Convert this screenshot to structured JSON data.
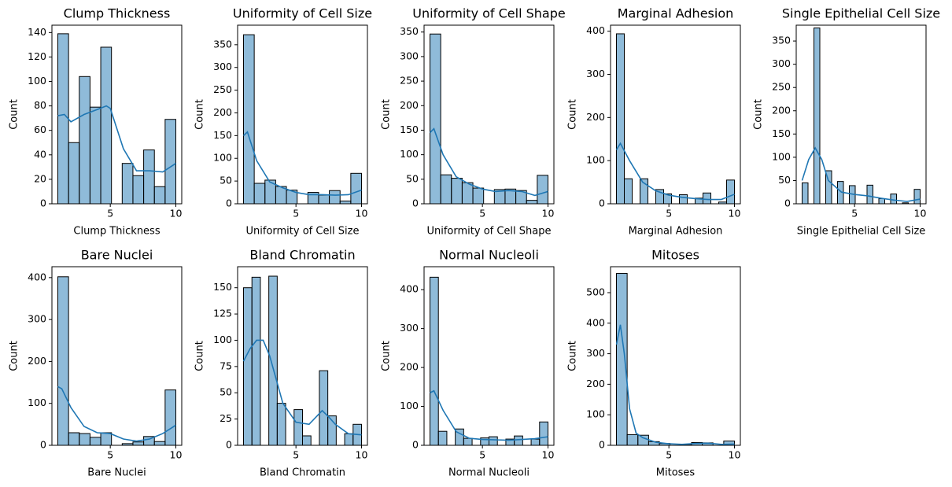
{
  "chart_data": [
    {
      "type": "histogram",
      "title": "Clump Thickness",
      "xlabel": "Clump Thickness",
      "ylabel": "Count",
      "color": "#1f77b4",
      "bins": [
        1,
        1.818,
        2.636,
        3.455,
        4.273,
        5.091,
        5.909,
        6.727,
        7.545,
        8.364,
        9.182,
        10
      ],
      "counts": [
        139,
        50,
        104,
        79,
        128,
        0,
        33,
        23,
        44,
        14,
        69
      ],
      "kde": {
        "x": [
          1,
          1.5,
          2,
          3,
          4,
          4.7,
          5,
          6,
          7,
          8,
          9,
          10
        ],
        "values": [
          72,
          73,
          67,
          73,
          77,
          80,
          78,
          45,
          27,
          27,
          26,
          33
        ]
      },
      "xlim": [
        0.55,
        10.45
      ],
      "xticks": [
        5,
        10
      ],
      "ylim": [
        0,
        146
      ],
      "yticks": [
        0,
        20,
        40,
        60,
        80,
        100,
        120,
        140
      ]
    },
    {
      "type": "histogram",
      "title": "Uniformity of Cell Size",
      "xlabel": "Uniformity of Cell Size",
      "ylabel": "Count",
      "color": "#1f77b4",
      "bins": [
        1,
        1.818,
        2.636,
        3.455,
        4.273,
        5.091,
        5.909,
        6.727,
        7.545,
        8.364,
        9.182,
        10
      ],
      "counts": [
        372,
        45,
        52,
        38,
        30,
        0,
        25,
        19,
        29,
        6,
        67
      ],
      "kde": {
        "x": [
          1,
          1.3,
          2,
          3,
          4,
          5,
          6,
          7,
          8,
          9,
          10
        ],
        "values": [
          150,
          158,
          95,
          48,
          35,
          25,
          20,
          20,
          19,
          20,
          30
        ]
      },
      "xlim": [
        0.55,
        10.45
      ],
      "xticks": [
        5,
        10
      ],
      "ylim": [
        0,
        393
      ],
      "yticks": [
        0,
        50,
        100,
        150,
        200,
        250,
        300,
        350
      ]
    },
    {
      "type": "histogram",
      "title": "Uniformity of Cell Shape",
      "xlabel": "Uniformity of Cell Shape",
      "ylabel": "Count",
      "color": "#1f77b4",
      "bins": [
        1,
        1.818,
        2.636,
        3.455,
        4.273,
        5.091,
        5.909,
        6.727,
        7.545,
        8.364,
        9.182,
        10
      ],
      "counts": [
        346,
        59,
        52,
        43,
        32,
        0,
        29,
        30,
        27,
        7,
        58
      ],
      "kde": {
        "x": [
          1,
          1.3,
          2,
          3,
          4,
          5,
          6,
          7,
          8,
          9,
          10
        ],
        "values": [
          145,
          153,
          100,
          55,
          40,
          30,
          25,
          27,
          25,
          17,
          25
        ]
      },
      "xlim": [
        0.55,
        10.45
      ],
      "xticks": [
        5,
        10
      ],
      "ylim": [
        0,
        364
      ],
      "yticks": [
        0,
        50,
        100,
        150,
        200,
        250,
        300,
        350
      ]
    },
    {
      "type": "histogram",
      "title": "Marginal Adhesion",
      "xlabel": "Marginal Adhesion",
      "ylabel": "Count",
      "color": "#1f77b4",
      "bins": [
        1,
        1.6,
        2.2,
        2.8,
        3.4,
        4,
        4.6,
        5.2,
        5.8,
        6.4,
        7,
        7.6,
        8.2,
        8.8,
        9.4,
        10
      ],
      "counts": [
        394,
        58,
        0,
        58,
        0,
        33,
        23,
        0,
        21,
        0,
        13,
        25,
        0,
        4,
        55
      ],
      "kde": {
        "x": [
          1,
          1.3,
          2,
          3,
          4,
          5,
          6,
          7,
          8,
          9,
          10
        ],
        "values": [
          125,
          140,
          100,
          50,
          30,
          20,
          15,
          12,
          10,
          10,
          22
        ]
      },
      "xlim": [
        0.55,
        10.45
      ],
      "xticks": [
        5,
        10
      ],
      "ylim": [
        0,
        414
      ],
      "yticks": [
        0,
        100,
        200,
        300,
        400
      ]
    },
    {
      "type": "histogram",
      "title": "Single Epithelial Cell Size",
      "xlabel": "Single Epithelial Cell Size",
      "ylabel": "Count",
      "color": "#1f77b4",
      "bins": [
        1,
        1.45,
        1.9,
        2.35,
        2.8,
        3.25,
        3.7,
        4.15,
        4.6,
        5.05,
        5.5,
        5.95,
        6.4,
        6.85,
        7.3,
        7.75,
        8.2,
        8.65,
        9.1,
        9.55,
        10
      ],
      "counts": [
        45,
        0,
        378,
        0,
        71,
        0,
        48,
        0,
        39,
        0,
        0,
        40,
        0,
        11,
        0,
        21,
        0,
        2,
        0,
        31
      ],
      "kde": {
        "x": [
          1,
          1.5,
          2,
          2.5,
          3,
          4,
          5,
          6,
          7,
          8,
          9,
          10
        ],
        "values": [
          50,
          95,
          120,
          95,
          50,
          25,
          20,
          17,
          12,
          8,
          5,
          10
        ]
      },
      "xlim": [
        0.55,
        10.45
      ],
      "xticks": [
        5,
        10
      ],
      "ylim": [
        0,
        384
      ],
      "yticks": [
        0,
        50,
        100,
        150,
        200,
        250,
        300,
        350
      ]
    },
    {
      "type": "histogram",
      "title": "Bare Nuclei",
      "xlabel": "Bare Nuclei",
      "ylabel": "Count",
      "color": "#1f77b4",
      "bins": [
        1,
        1.818,
        2.636,
        3.455,
        4.273,
        5.091,
        5.909,
        6.727,
        7.545,
        8.364,
        9.182,
        10
      ],
      "counts": [
        402,
        30,
        28,
        19,
        30,
        0,
        4,
        8,
        21,
        9,
        132
      ],
      "kde": {
        "x": [
          1,
          1.3,
          2,
          3,
          4,
          5,
          6,
          7,
          8,
          9,
          10
        ],
        "values": [
          140,
          135,
          90,
          45,
          30,
          28,
          15,
          10,
          15,
          28,
          48
        ]
      },
      "xlim": [
        0.55,
        10.45
      ],
      "xticks": [
        5,
        10
      ],
      "ylim": [
        0,
        426
      ],
      "yticks": [
        0,
        100,
        200,
        300,
        400
      ]
    },
    {
      "type": "histogram",
      "title": "Bland Chromatin",
      "xlabel": "Bland Chromatin",
      "ylabel": "Count",
      "color": "#1f77b4",
      "bins": [
        1,
        1.643,
        2.286,
        2.929,
        3.571,
        4.214,
        4.857,
        5.5,
        6.143,
        6.786,
        7.429,
        8.071,
        8.714,
        9.357,
        10
      ],
      "counts": [
        150,
        160,
        0,
        161,
        40,
        0,
        34,
        9,
        0,
        71,
        28,
        0,
        11,
        20
      ],
      "kde": {
        "x": [
          1,
          1.5,
          2,
          2.5,
          3,
          4,
          5,
          6,
          7,
          7.5,
          8,
          9,
          10
        ],
        "values": [
          80,
          92,
          100,
          100,
          85,
          40,
          22,
          20,
          33,
          27,
          20,
          11,
          10
        ]
      },
      "xlim": [
        0.55,
        10.45
      ],
      "xticks": [
        5,
        10
      ],
      "ylim": [
        0,
        170
      ],
      "yticks": [
        0,
        25,
        50,
        75,
        100,
        125,
        150
      ]
    },
    {
      "type": "histogram",
      "title": "Normal Nucleoli",
      "xlabel": "Normal Nucleoli",
      "ylabel": "Count",
      "color": "#1f77b4",
      "bins": [
        1,
        1.643,
        2.286,
        2.929,
        3.571,
        4.214,
        4.857,
        5.5,
        6.143,
        6.786,
        7.429,
        8.071,
        8.714,
        9.357,
        10
      ],
      "counts": [
        432,
        36,
        0,
        42,
        18,
        0,
        19,
        22,
        0,
        16,
        24,
        0,
        16,
        60
      ],
      "kde": {
        "x": [
          1,
          1.3,
          2,
          3,
          4,
          5,
          6,
          7,
          8,
          9,
          10
        ],
        "values": [
          135,
          140,
          90,
          35,
          18,
          15,
          14,
          13,
          15,
          17,
          22
        ]
      },
      "xlim": [
        0.55,
        10.45
      ],
      "xticks": [
        5,
        10
      ],
      "ylim": [
        0,
        459
      ],
      "yticks": [
        0,
        100,
        200,
        300,
        400
      ]
    },
    {
      "type": "histogram",
      "title": "Mitoses",
      "xlabel": "Mitoses",
      "ylabel": "Count",
      "color": "#1f77b4",
      "bins": [
        1,
        1.818,
        2.636,
        3.455,
        4.273,
        5.091,
        5.909,
        6.727,
        7.545,
        8.364,
        9.182,
        10
      ],
      "counts": [
        563,
        35,
        33,
        12,
        6,
        0,
        3,
        9,
        8,
        0,
        14
      ],
      "kde": {
        "x": [
          1,
          1.3,
          1.6,
          2,
          2.5,
          3,
          4,
          5,
          6,
          7,
          8,
          9,
          10
        ],
        "values": [
          330,
          395,
          300,
          120,
          40,
          25,
          10,
          5,
          3,
          6,
          7,
          3,
          4
        ]
      },
      "xlim": [
        0.55,
        10.45
      ],
      "xticks": [
        5,
        10
      ],
      "ylim": [
        0,
        585
      ],
      "yticks": [
        0,
        100,
        200,
        300,
        400,
        500
      ]
    }
  ]
}
